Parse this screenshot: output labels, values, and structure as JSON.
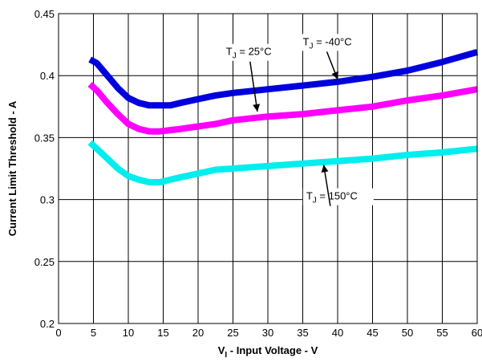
{
  "chart_data": {
    "type": "line",
    "title": "",
    "xlabel": "V",
    "xlabel_sub": "I",
    "xlabel_rest": " - Input Voltage - V",
    "ylabel": "Current Limit Threshold - A",
    "xlim": [
      0,
      60
    ],
    "ylim": [
      0.2,
      0.45
    ],
    "x_ticks": [
      0,
      5,
      10,
      15,
      20,
      25,
      30,
      35,
      40,
      45,
      50,
      55,
      60
    ],
    "y_ticks": [
      0.2,
      0.25,
      0.3,
      0.35,
      0.4,
      0.45
    ],
    "x_tick_labels": [
      "0",
      "5",
      "10",
      "15",
      "20",
      "25",
      "30",
      "35",
      "40",
      "45",
      "50",
      "55",
      "60"
    ],
    "y_tick_labels": [
      "0.2",
      "0.25",
      "0.3",
      "0.35",
      "0.4",
      "0.45"
    ],
    "grid": true,
    "series": [
      {
        "name": "TJ = -40°C",
        "color": "#0000dd",
        "x": [
          4.5,
          5.5,
          7,
          8.5,
          10,
          11.5,
          13,
          14.5,
          16,
          17.5,
          20,
          22.5,
          25,
          30,
          35,
          40,
          45,
          50,
          55,
          60
        ],
        "y": [
          0.413,
          0.41,
          0.4,
          0.39,
          0.382,
          0.378,
          0.376,
          0.376,
          0.376,
          0.378,
          0.381,
          0.384,
          0.386,
          0.389,
          0.392,
          0.395,
          0.399,
          0.404,
          0.411,
          0.419
        ]
      },
      {
        "name": "TJ = 25°C",
        "color": "#ff00ff",
        "x": [
          4.5,
          5.5,
          7,
          8.5,
          10,
          11.5,
          13,
          14.5,
          16,
          17.5,
          20,
          22.5,
          25,
          30,
          35,
          40,
          45,
          50,
          55,
          60
        ],
        "y": [
          0.393,
          0.388,
          0.378,
          0.369,
          0.361,
          0.357,
          0.355,
          0.355,
          0.356,
          0.357,
          0.359,
          0.361,
          0.364,
          0.367,
          0.369,
          0.372,
          0.375,
          0.38,
          0.384,
          0.389
        ]
      },
      {
        "name": "TJ = 150°C",
        "color": "#00eeee",
        "x": [
          4.5,
          5.5,
          7,
          8.5,
          10,
          11.5,
          13,
          14.5,
          16,
          17.5,
          20,
          22.5,
          25,
          30,
          35,
          40,
          45,
          50,
          55,
          60
        ],
        "y": [
          0.346,
          0.341,
          0.333,
          0.325,
          0.319,
          0.316,
          0.314,
          0.314,
          0.316,
          0.318,
          0.321,
          0.324,
          0.325,
          0.327,
          0.329,
          0.331,
          0.333,
          0.336,
          0.338,
          0.341
        ]
      }
    ],
    "annotations": [
      {
        "label_main": "T",
        "label_sub": "J",
        "label_rest": " = -40°C",
        "series": 0,
        "text_x": 35,
        "text_y": 0.4245,
        "arrow_to_x": 40,
        "arrow_to_y": 0.397
      },
      {
        "label_main": "T",
        "label_sub": "J",
        "label_rest": " = 25°C",
        "series": 1,
        "text_x": 24,
        "text_y": 0.4165,
        "arrow_to_x": 28.5,
        "arrow_to_y": 0.371
      },
      {
        "label_main": "T",
        "label_sub": "J",
        "label_rest": " = 150°C",
        "series": 2,
        "text_x": 35.5,
        "text_y": 0.3,
        "arrow_to_x": 38,
        "arrow_to_y": 0.328
      }
    ]
  }
}
